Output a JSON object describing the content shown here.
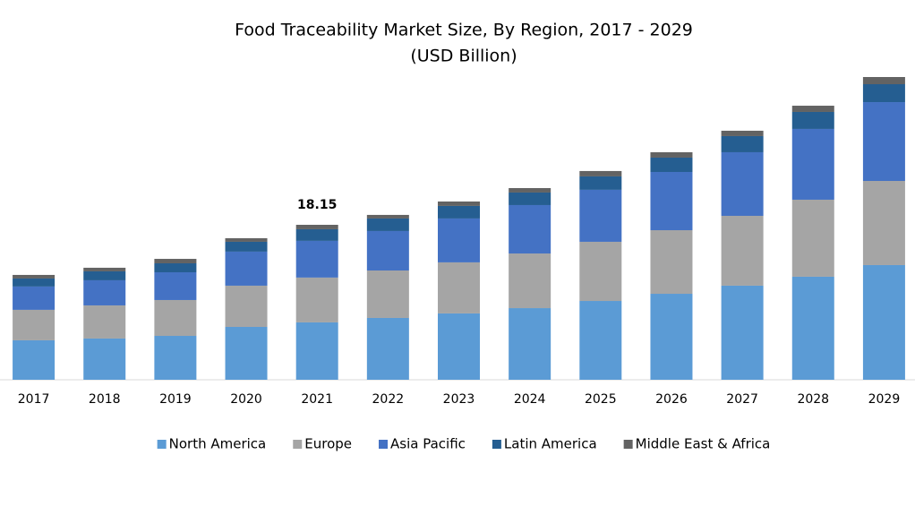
{
  "chart_data": {
    "type": "stacked_bar",
    "title": "Food Traceability Market Size, By Region, 2017 - 2029",
    "subtitle": "(USD Billion)",
    "categories": [
      "2017",
      "2018",
      "2019",
      "2020",
      "2021",
      "2022",
      "2023",
      "2024",
      "2025",
      "2026",
      "2027",
      "2028",
      "2029"
    ],
    "series": [
      {
        "name": "North America",
        "color": "#5b9bd5",
        "values": [
          4.62,
          4.83,
          5.14,
          6.19,
          6.72,
          7.24,
          7.77,
          8.39,
          9.23,
          10.07,
          11.02,
          12.07,
          13.43
        ]
      },
      {
        "name": "Europe",
        "color": "#a5a5a5",
        "values": [
          3.57,
          3.88,
          4.2,
          4.83,
          5.25,
          5.56,
          5.98,
          6.4,
          6.93,
          7.45,
          8.18,
          9.02,
          9.86
        ]
      },
      {
        "name": "Asia Pacific",
        "color": "#4472c4",
        "values": [
          2.73,
          2.94,
          3.25,
          3.99,
          4.3,
          4.62,
          5.14,
          5.67,
          6.09,
          6.82,
          7.45,
          8.29,
          9.23
        ]
      },
      {
        "name": "Latin America",
        "color": "#255e91",
        "values": [
          0.94,
          1.05,
          1.05,
          1.15,
          1.36,
          1.47,
          1.47,
          1.47,
          1.57,
          1.68,
          1.89,
          1.99,
          2.1
        ]
      },
      {
        "name": "Middle East & Africa",
        "color": "#636363",
        "values": [
          0.42,
          0.42,
          0.52,
          0.42,
          0.52,
          0.42,
          0.52,
          0.52,
          0.63,
          0.63,
          0.63,
          0.73,
          0.84
        ]
      }
    ],
    "annotations": [
      {
        "category": "2021",
        "value": 18.15
      }
    ],
    "legend": "bottom"
  }
}
